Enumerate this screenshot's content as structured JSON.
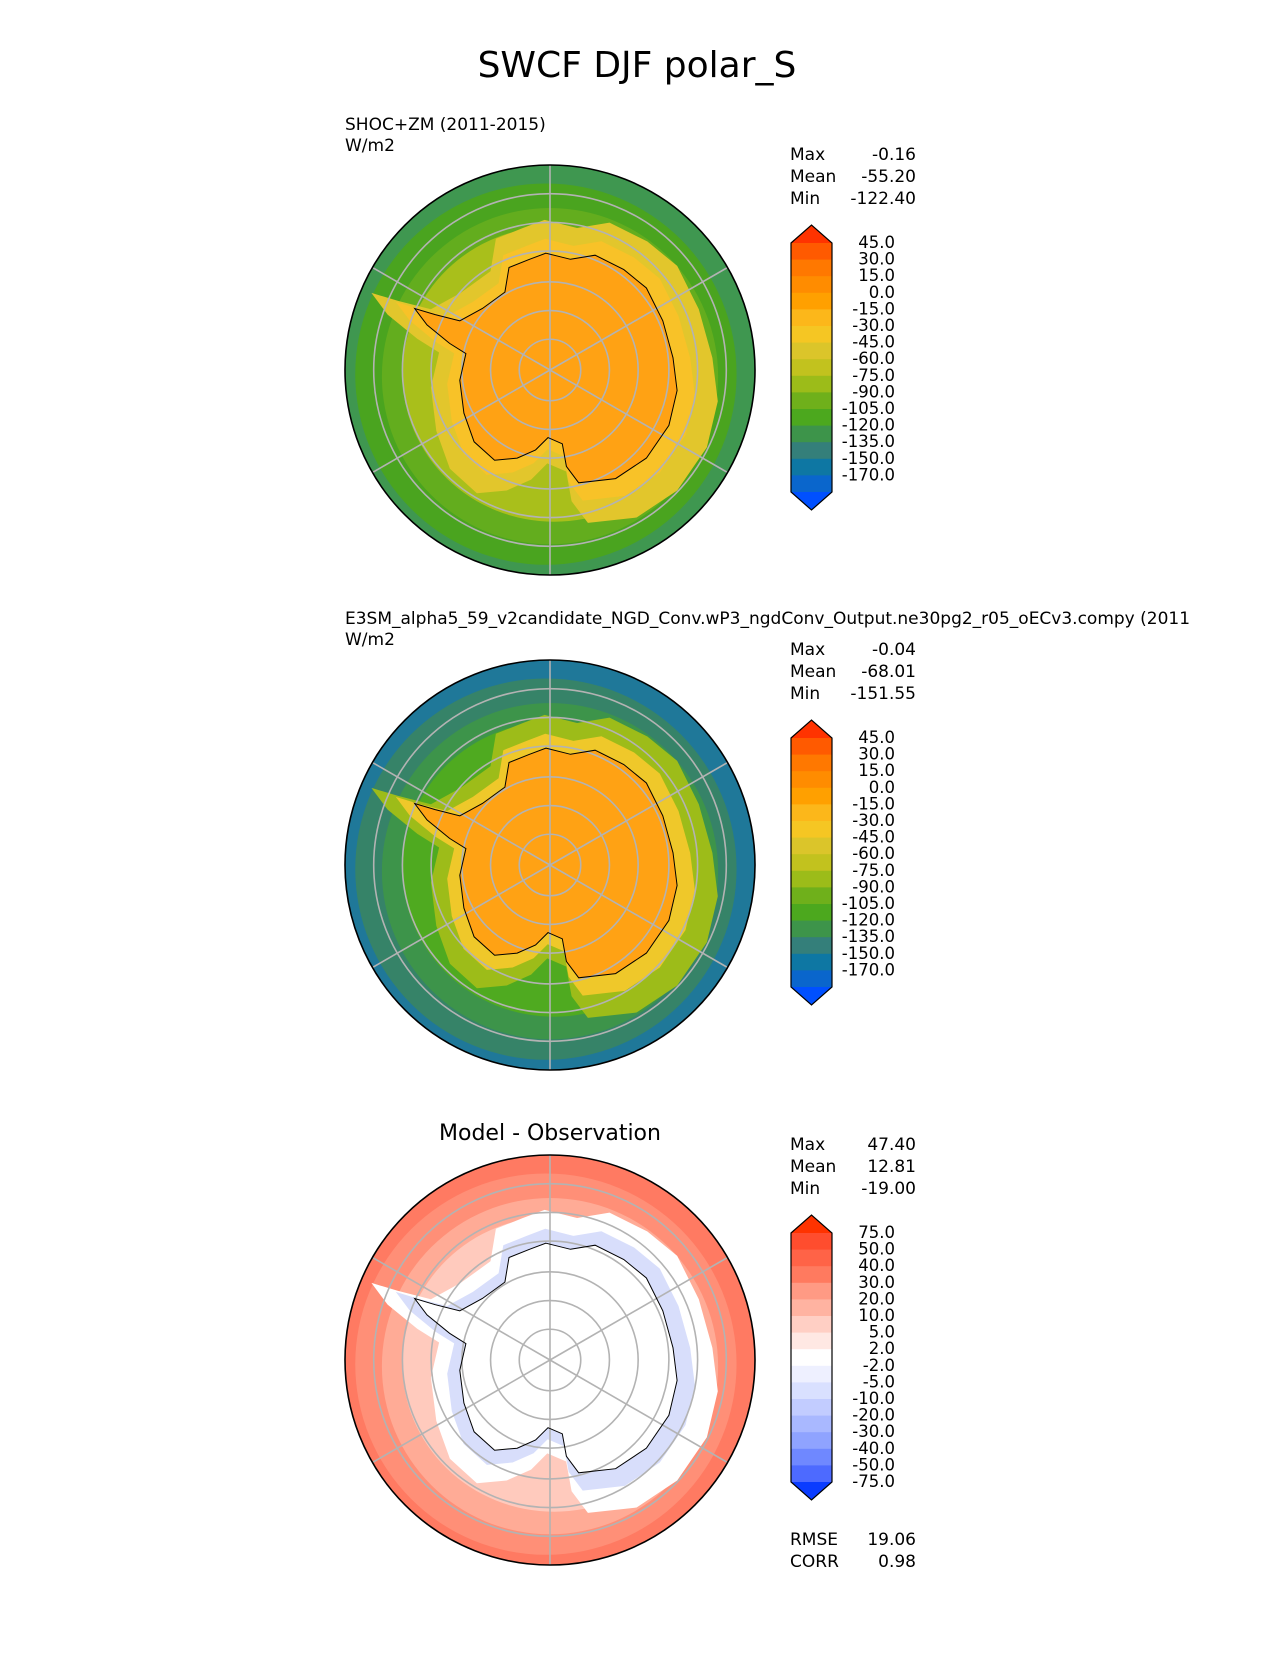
{
  "chart_data": {
    "type": "contour-map",
    "title": "SWCF DJF polar_S",
    "panels": [
      {
        "id": "test",
        "title_left": "SHOC+ZM (2011-2015)",
        "title_center": "",
        "units": "W/m2",
        "stats": [
          {
            "label": "Max",
            "value": "-0.16"
          },
          {
            "label": "Mean",
            "value": "-55.20"
          },
          {
            "label": "Min",
            "value": "-122.40"
          }
        ],
        "colorbar": {
          "labels": [
            "45.0",
            "30.0",
            "15.0",
            "0.0",
            "-15.0",
            "-30.0",
            "-45.0",
            "-60.0",
            "-75.0",
            "-90.0",
            "-105.0",
            "-120.0",
            "-135.0",
            "-150.0",
            "-170.0"
          ],
          "colors": [
            "#ff3300",
            "#ff5a00",
            "#ff7800",
            "#ff8c00",
            "#ffa000",
            "#fcb71a",
            "#f5c623",
            "#dbc52a",
            "#c2c21e",
            "#9cbc19",
            "#6fb01b",
            "#4ca81e",
            "#3d944a",
            "#347f7a",
            "#0e77a3",
            "#0a66cc",
            "#0050ff"
          ]
        },
        "zones": {
          "land": "#ffa214",
          "coast": "#f8c228",
          "inner": "#e2c62c",
          "mid": "#a9bf1b",
          "outer": "#63ad1e",
          "rim": "#4aa41f",
          "deep": "#3f9750"
        },
        "extra_stats": []
      },
      {
        "id": "ref",
        "title_left": "E3SM_alpha5_59_v2candidate_NGD_Conv.wP3_ngdConv_Output.ne30pg2_r05_oECv3.compy (2011",
        "title_center": "",
        "units": "W/m2",
        "stats": [
          {
            "label": "Max",
            "value": "-0.04"
          },
          {
            "label": "Mean",
            "value": "-68.01"
          },
          {
            "label": "Min",
            "value": "-151.55"
          }
        ],
        "colorbar": {
          "labels": [
            "45.0",
            "30.0",
            "15.0",
            "0.0",
            "-15.0",
            "-30.0",
            "-45.0",
            "-60.0",
            "-75.0",
            "-90.0",
            "-105.0",
            "-120.0",
            "-135.0",
            "-150.0",
            "-170.0"
          ],
          "colors": [
            "#ff3300",
            "#ff5a00",
            "#ff7800",
            "#ff8c00",
            "#ffa000",
            "#fcb71a",
            "#f5c623",
            "#dbc52a",
            "#c2c21e",
            "#9cbc19",
            "#6fb01b",
            "#4ca81e",
            "#3d944a",
            "#347f7a",
            "#0e77a3",
            "#0a66cc",
            "#0050ff"
          ]
        },
        "zones": {
          "land": "#ffa214",
          "coast": "#efc82a",
          "inner": "#9dbc19",
          "mid": "#4faa20",
          "outer": "#3d944a",
          "rim": "#368368",
          "deep": "#1f7899"
        },
        "extra_stats": []
      },
      {
        "id": "diff",
        "title_left": "",
        "title_center": "Model - Observation",
        "units": "",
        "stats": [
          {
            "label": "Max",
            "value": "47.40"
          },
          {
            "label": "Mean",
            "value": "12.81"
          },
          {
            "label": "Min",
            "value": "-19.00"
          }
        ],
        "colorbar": {
          "labels": [
            "75.0",
            "50.0",
            "40.0",
            "30.0",
            "20.0",
            "10.0",
            "5.0",
            "2.0",
            "-2.0",
            "-5.0",
            "-10.0",
            "-20.0",
            "-30.0",
            "-40.0",
            "-50.0",
            "-75.0"
          ],
          "colors": [
            "#ff3300",
            "#ff4d2e",
            "#ff6347",
            "#ff7a5f",
            "#ff9a84",
            "#ffb3a1",
            "#ffcfc4",
            "#ffe8e3",
            "#ffffff",
            "#eef0ff",
            "#d9e0ff",
            "#c2ccff",
            "#a9b8ff",
            "#8fa3ff",
            "#6f88ff",
            "#4d6aff",
            "#0a3cff"
          ]
        },
        "zones": {
          "land": "#ffffff",
          "coast": "#d8defb",
          "inner": "#ffffff",
          "mid": "#ffcabd",
          "outer": "#ffab96",
          "rim": "#ff8f77",
          "deep": "#ff7a62"
        },
        "extra_stats": [
          {
            "label": "RMSE",
            "value": "19.06"
          },
          {
            "label": "CORR",
            "value": "0.98"
          }
        ]
      }
    ]
  }
}
